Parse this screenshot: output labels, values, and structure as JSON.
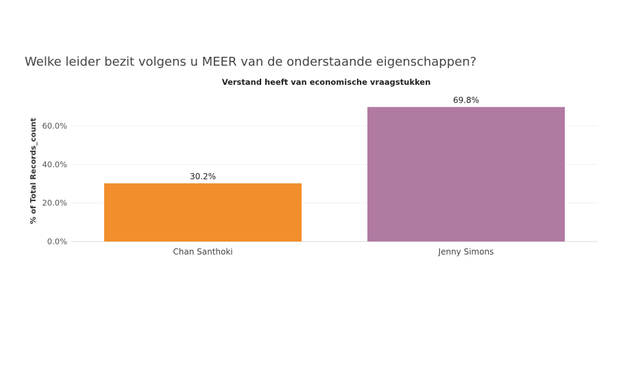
{
  "question": "Welke leider bezit volgens u MEER van de onderstaande eigenschappen?",
  "chart_data": {
    "type": "bar",
    "title": "Verstand heeft van economische vraagstukken",
    "ylabel": "% of Total Records_count",
    "xlabel": "",
    "categories": [
      "Chan Santhoki",
      "Jenny Simons"
    ],
    "values": [
      30.2,
      69.8
    ],
    "data_labels": [
      "30.2%",
      "69.8%"
    ],
    "colors": [
      "#f28e2b",
      "#b07aa1"
    ],
    "yticks": [
      0,
      20,
      40,
      60
    ],
    "ytick_labels": [
      "0.0%",
      "20.0%",
      "40.0%",
      "60.0%"
    ],
    "ylim": [
      0,
      75
    ],
    "grid": true,
    "legend": "none"
  }
}
